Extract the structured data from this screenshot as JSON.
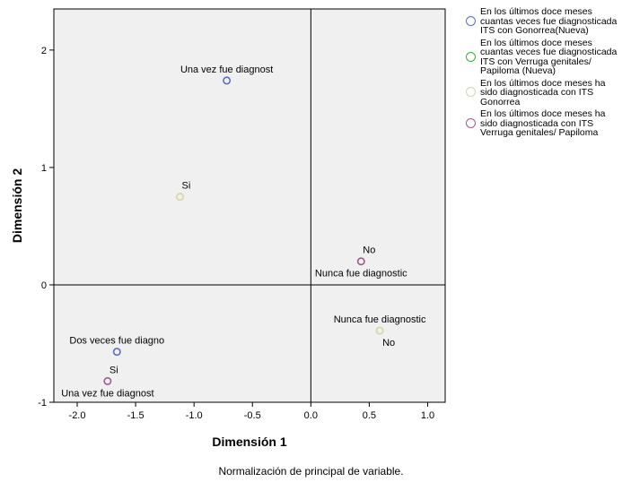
{
  "chart_data": {
    "type": "scatter",
    "xlabel": "Dimensión 1",
    "ylabel": "Dimensión 2",
    "xlim": [
      -2.2,
      1.15
    ],
    "ylim": [
      -1.0,
      2.35
    ],
    "x_ticks": [
      -2.0,
      -1.5,
      -1.0,
      -0.5,
      0.0,
      0.5,
      1.0
    ],
    "x_tick_labels": [
      "-2.0",
      "-1.5",
      "-1.0",
      "-0.5",
      "0.0",
      "0.5",
      "1.0"
    ],
    "y_ticks": [
      -1,
      0,
      1,
      2
    ],
    "y_tick_labels": [
      "-1",
      "0",
      "1",
      "2"
    ],
    "reference_lines": {
      "x": 0,
      "y": 0
    },
    "grid": false,
    "legend_position": "right",
    "series": [
      {
        "name": "En los últimos doce meses cuantas veces fue diagnosticada ITS con Gonorrea(Nueva)",
        "color": "#5b6fbd",
        "points": [
          {
            "label": "Una vez fue diagnost",
            "x": -0.72,
            "y": 1.74,
            "label_pos": "above"
          },
          {
            "label": "Dos veces fue diagno",
            "x": -1.66,
            "y": -0.57,
            "label_pos": "above"
          }
        ]
      },
      {
        "name": "En los últimos doce meses cuantas veces fue diagnosticada ITS con Verruga genitales/ Papiloma (Nueva)",
        "color": "#3daa3d",
        "points": []
      },
      {
        "name": "En los últimos doce meses ha sido diagnosticada con ITS Gonorrea",
        "color": "#d7d79a",
        "points": [
          {
            "label": "Si",
            "x": -1.12,
            "y": 0.75,
            "label_pos": "above-right"
          },
          {
            "label": "Nunca fue diagnostic",
            "x": 0.59,
            "y": -0.39,
            "label_pos": "above"
          },
          {
            "label": "No",
            "x": 0.59,
            "y": -0.39,
            "label_pos": "below-right"
          }
        ]
      },
      {
        "name": "En los últimos doce meses ha sido diagnosticada con ITS Verruga genitales/ Papiloma",
        "color": "#9a5a8e",
        "points": [
          {
            "label": "No",
            "x": 0.43,
            "y": 0.2,
            "label_pos": "above-right"
          },
          {
            "label": "Nunca fue diagnostic",
            "x": 0.43,
            "y": 0.2,
            "label_pos": "below"
          },
          {
            "label": "Si",
            "x": -1.74,
            "y": -0.82,
            "label_pos": "above-right"
          },
          {
            "label": "Una vez fue diagnost",
            "x": -1.74,
            "y": -0.82,
            "label_pos": "below"
          }
        ]
      }
    ]
  },
  "footnote": "Normalización de principal de variable."
}
